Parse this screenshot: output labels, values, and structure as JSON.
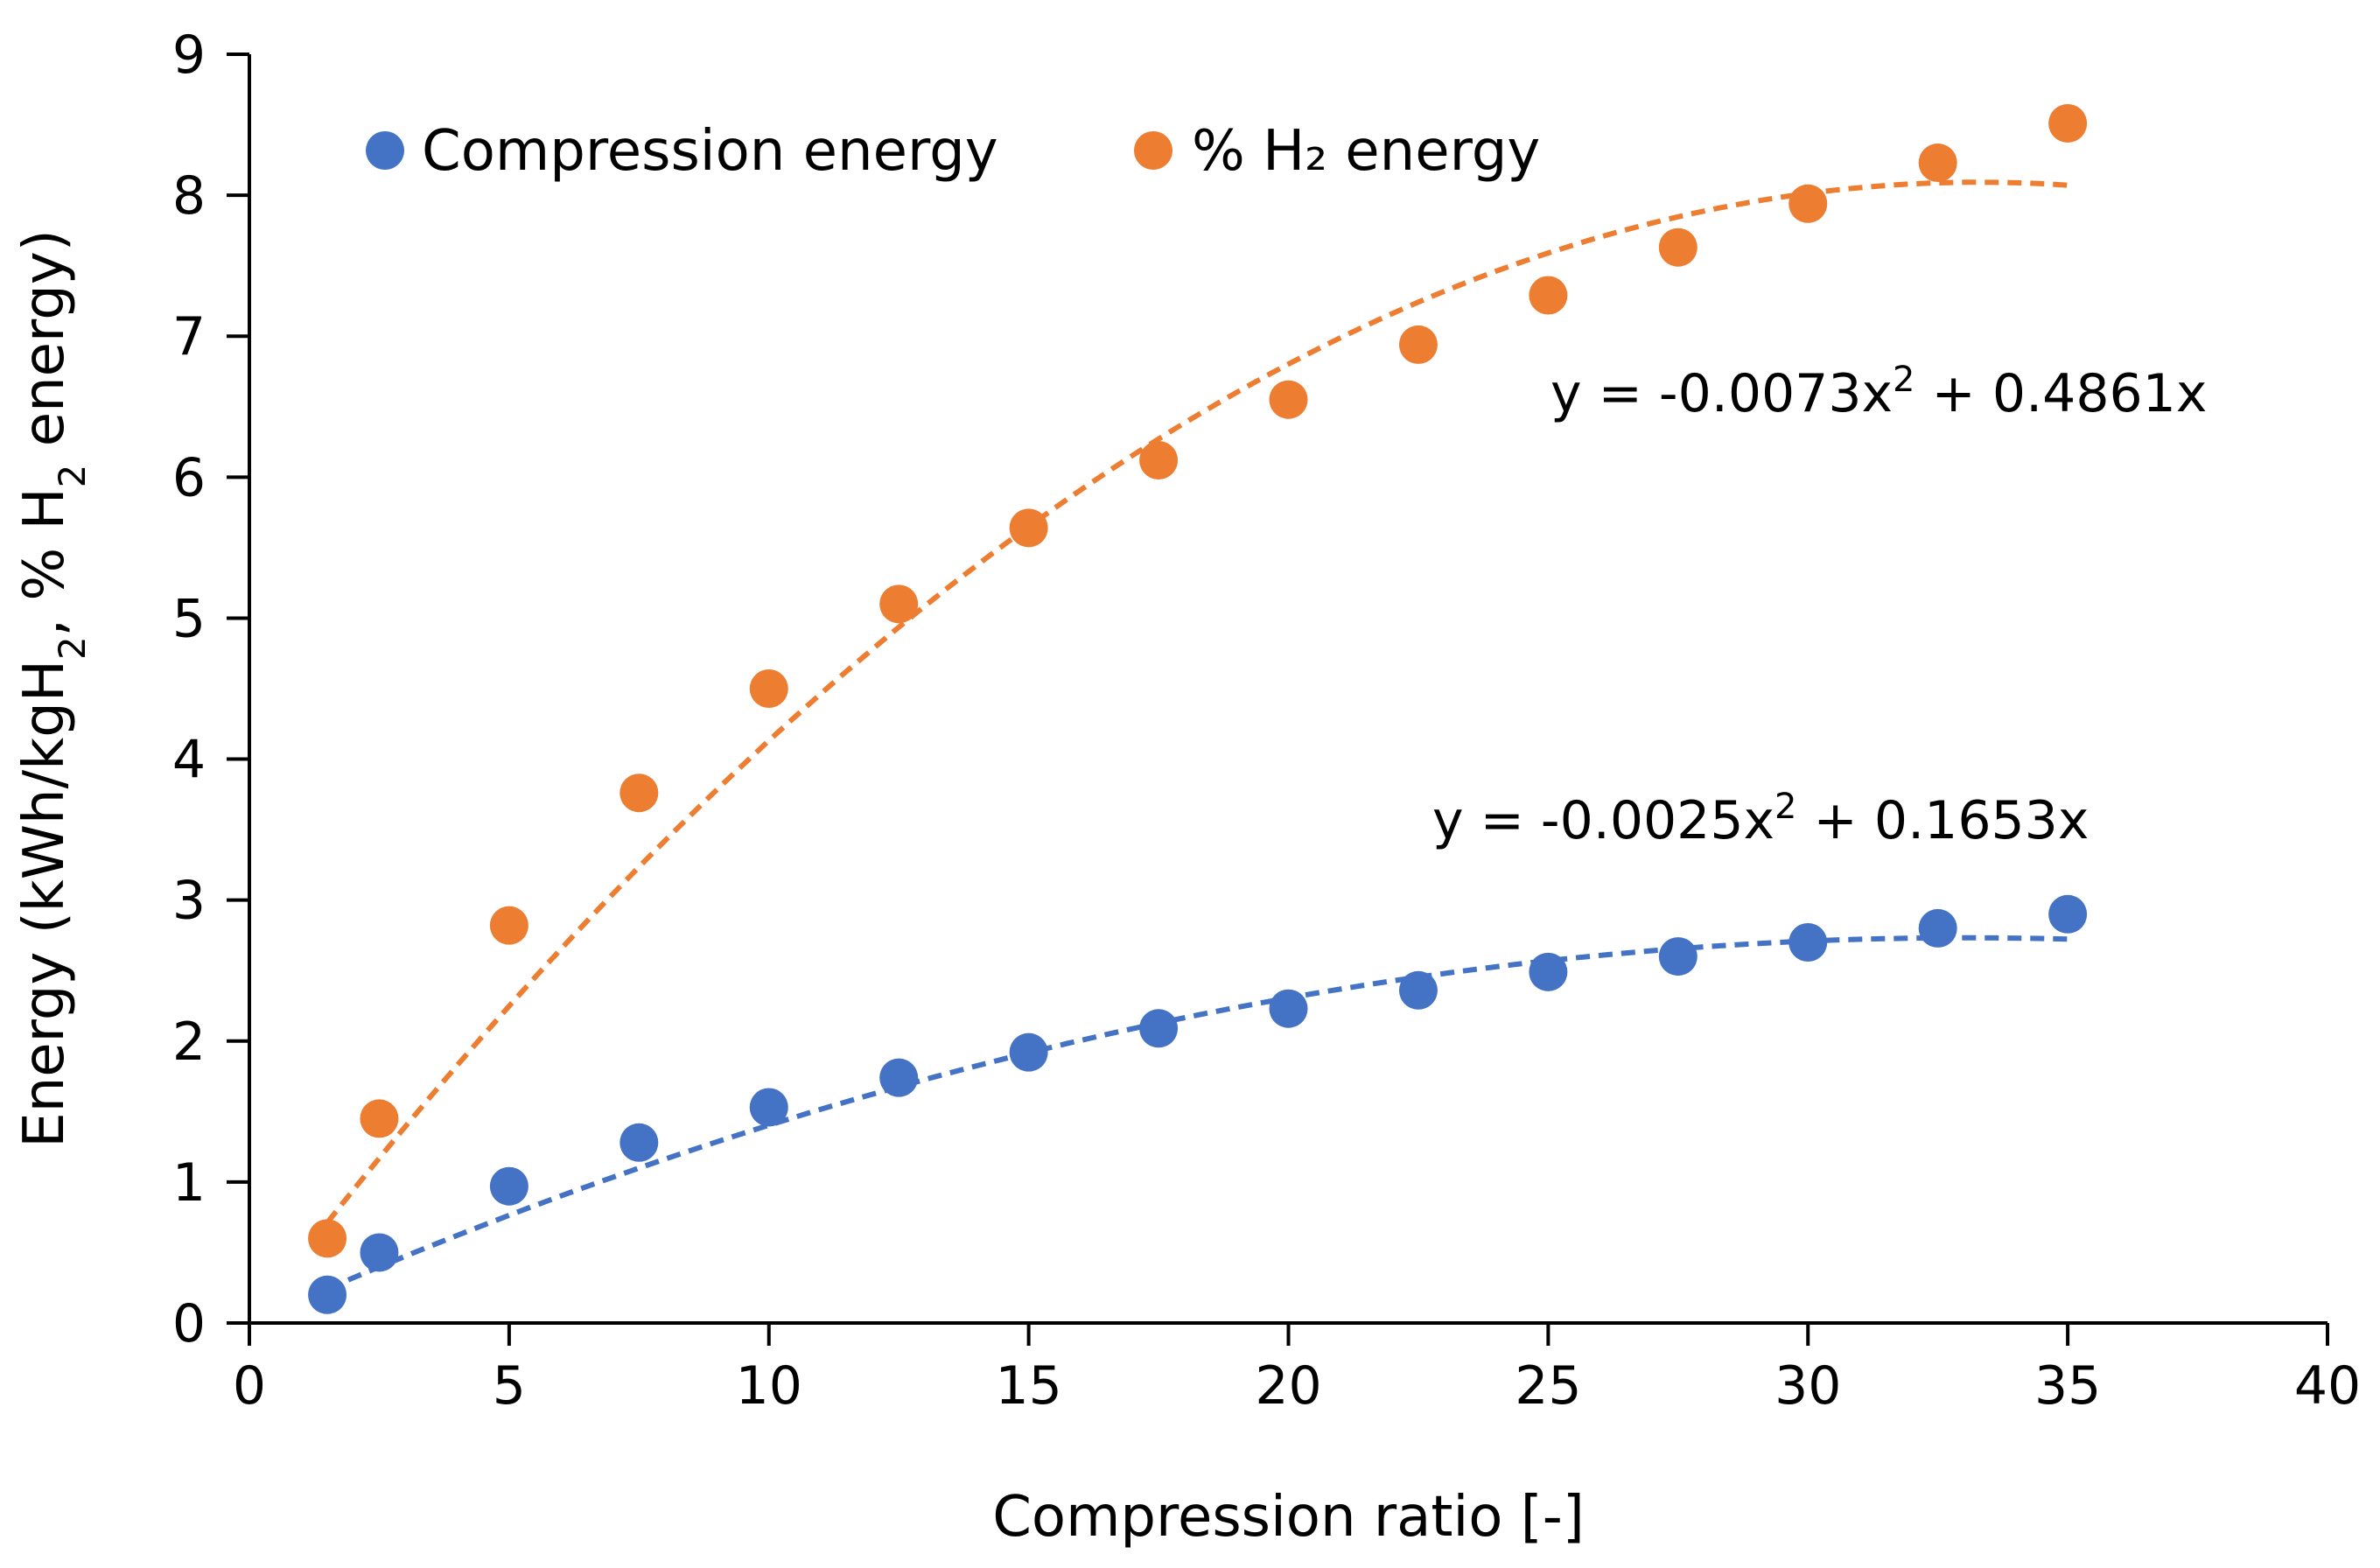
{
  "chart_data": {
    "type": "scatter",
    "title": "",
    "xlabel": "Compression ratio [-]",
    "ylabel": {
      "prefix": "Energy (kWh/kgH",
      "sub1": "2",
      "middle": ", % H",
      "sub2": "2",
      "suffix": " energy)"
    },
    "xlim": [
      0,
      40
    ],
    "ylim": [
      0,
      9
    ],
    "xticks": [
      0,
      5,
      10,
      15,
      20,
      25,
      30,
      35,
      40
    ],
    "yticks": [
      0,
      1,
      2,
      3,
      4,
      5,
      6,
      7,
      8,
      9
    ],
    "grid": false,
    "legend_position": "top-left",
    "x": [
      1.5,
      2.5,
      5,
      7.5,
      10,
      12.5,
      15,
      17.5,
      20,
      22.5,
      25,
      27.5,
      30,
      32.5,
      35
    ],
    "series": [
      {
        "name": "Compression energy",
        "color": "#4472C4",
        "values": [
          0.2,
          0.5,
          0.97,
          1.28,
          1.53,
          1.74,
          1.92,
          2.09,
          2.23,
          2.36,
          2.49,
          2.6,
          2.7,
          2.8,
          2.9
        ],
        "trendline": {
          "type": "polynomial",
          "a": -0.0025,
          "b": 0.1653,
          "equation": {
            "main": "y = -0.0025x",
            "sup": "2",
            "rest": " + 0.1653x"
          }
        }
      },
      {
        "name": "% H₂ energy",
        "color": "#ED7D31",
        "values": [
          0.6,
          1.45,
          2.82,
          3.76,
          4.5,
          5.1,
          5.64,
          6.12,
          6.55,
          6.94,
          7.29,
          7.63,
          7.94,
          8.23,
          8.51
        ],
        "trendline": {
          "type": "polynomial",
          "a": -0.0073,
          "b": 0.4861,
          "equation": {
            "main": "y = -0.0073x",
            "sup": "2",
            "rest": " + 0.4861x"
          }
        }
      }
    ]
  }
}
